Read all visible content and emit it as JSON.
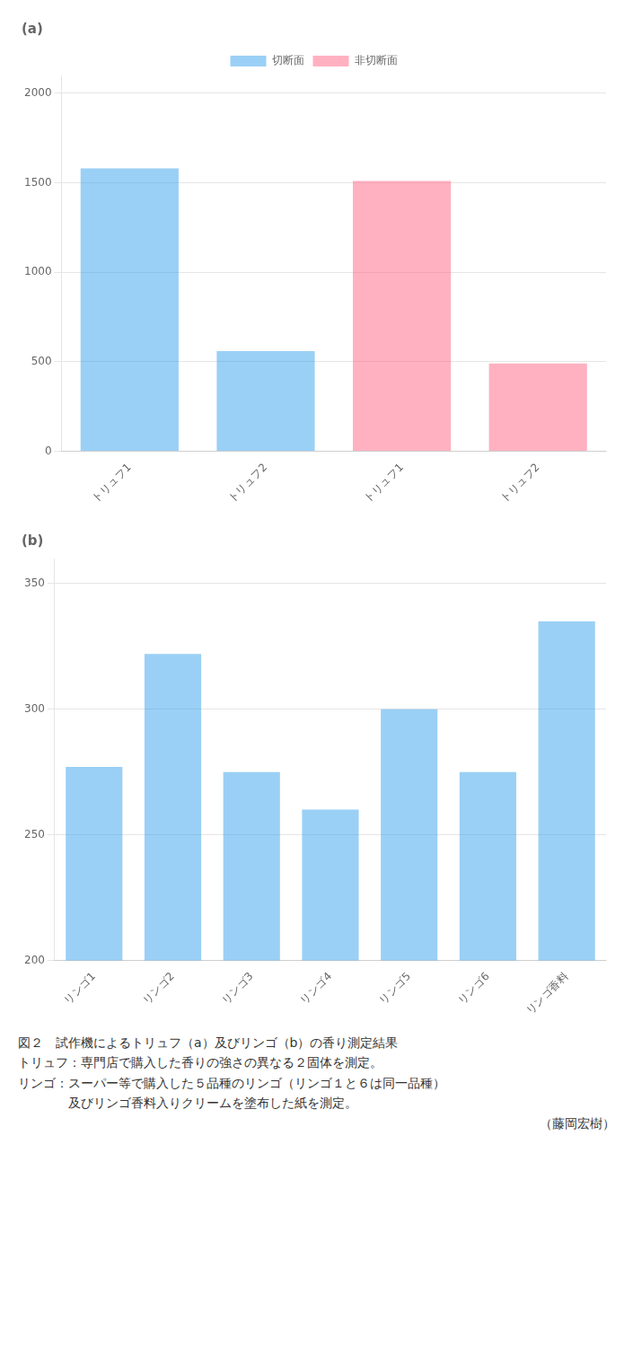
{
  "chart_data": [
    {
      "type": "bar",
      "title": "(a)",
      "categories": [
        "トリュフ1",
        "トリュフ2",
        "トリュフ1",
        "トリュフ2"
      ],
      "series": [
        {
          "name": "切断面",
          "values": [
            1580,
            560,
            null,
            null
          ]
        },
        {
          "name": "非切断面",
          "values": [
            null,
            null,
            1510,
            490
          ]
        }
      ],
      "ylim": [
        0,
        2100
      ],
      "yticks": [
        0,
        500,
        1000,
        1500,
        2000
      ],
      "grid": true,
      "legend": "top"
    },
    {
      "type": "bar",
      "title": "(b)",
      "categories": [
        "リンゴ1",
        "リンゴ2",
        "リンゴ3",
        "リンゴ4",
        "リンゴ5",
        "リンゴ6",
        "リンゴ香料"
      ],
      "values": [
        277,
        322,
        275,
        260,
        300,
        275,
        335
      ],
      "ylim": [
        200,
        360
      ],
      "yticks": [
        200,
        250,
        300,
        350
      ],
      "grid": true,
      "annotations": [
        "図２　試作機によるトリュフ（a）及びリンゴ（b）の香り測定結果",
        "トリュフ：専門店で購入した香りの強さの異なる２固体を測定。",
        "リンゴ：スーパー等で購入した５品種のリンゴ（リンゴ１と６は同一品種）",
        "　　　　及びリンゴ香料入りクリームを塗布した紙を測定。",
        "（藤岡宏樹）"
      ]
    }
  ]
}
